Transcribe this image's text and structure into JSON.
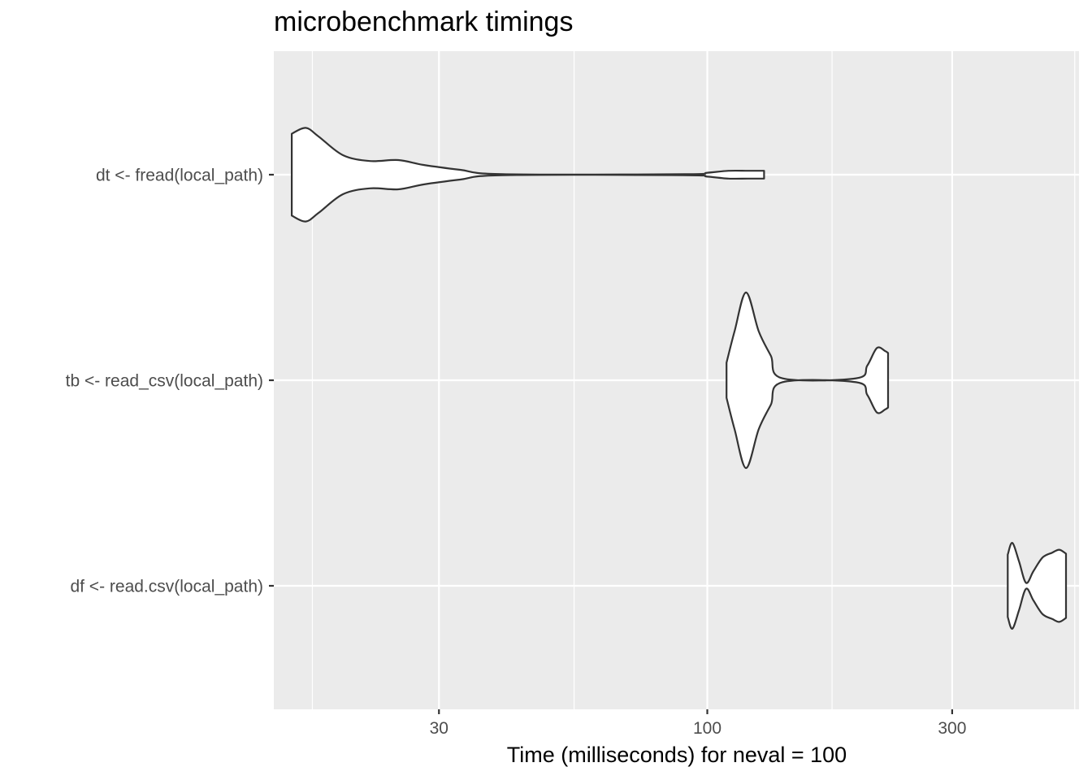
{
  "chart_data": {
    "type": "violin",
    "title": "microbenchmark timings",
    "xlabel": "Time (milliseconds) for neval = 100",
    "ylabel": "",
    "x_scale": "log10",
    "xlim": [
      14.3,
      530
    ],
    "x_ticks_major": [
      30,
      100,
      300
    ],
    "x_tick_labels": [
      "30",
      "100",
      "300"
    ],
    "x_ticks_minor": [
      17,
      55,
      175,
      520
    ],
    "grid": true,
    "panel_background": "#ebebeb",
    "grid_color": "#ffffff",
    "violin_fill": "#ffffff",
    "violin_outline": "#333333",
    "categories": [
      "dt <- fread(local_path)",
      "tb <- read_csv(local_path)",
      "df <- read.csv(local_path)"
    ],
    "series": [
      {
        "category": "dt <- fread(local_path)",
        "min": 15.5,
        "max": 129,
        "n": 100,
        "density": [
          [
            15.5,
            0.42
          ],
          [
            16.5,
            0.48
          ],
          [
            17.5,
            0.39
          ],
          [
            19.5,
            0.2
          ],
          [
            22,
            0.14
          ],
          [
            25,
            0.15
          ],
          [
            28,
            0.1
          ],
          [
            33,
            0.05
          ],
          [
            40,
            0.005
          ],
          [
            90,
            0.005
          ],
          [
            100,
            0.02
          ],
          [
            110,
            0.04
          ],
          [
            120,
            0.04
          ],
          [
            129,
            0.04
          ]
        ]
      },
      {
        "category": "tb <- read_csv(local_path)",
        "min": 109,
        "max": 225,
        "n": 100,
        "density": [
          [
            109,
            0.18
          ],
          [
            113,
            0.5
          ],
          [
            119,
            0.9
          ],
          [
            126,
            0.5
          ],
          [
            133,
            0.25
          ],
          [
            140,
            0.02
          ],
          [
            195,
            0.02
          ],
          [
            205,
            0.15
          ],
          [
            214,
            0.33
          ],
          [
            222,
            0.3
          ],
          [
            225,
            0.28
          ]
        ]
      },
      {
        "category": "df <- read.csv(local_path)",
        "min": 385,
        "max": 500,
        "n": 100,
        "density": [
          [
            385,
            0.32
          ],
          [
            393,
            0.44
          ],
          [
            405,
            0.25
          ],
          [
            418,
            0.03
          ],
          [
            432,
            0.15
          ],
          [
            450,
            0.29
          ],
          [
            470,
            0.34
          ],
          [
            485,
            0.37
          ],
          [
            500,
            0.33
          ]
        ]
      }
    ]
  }
}
